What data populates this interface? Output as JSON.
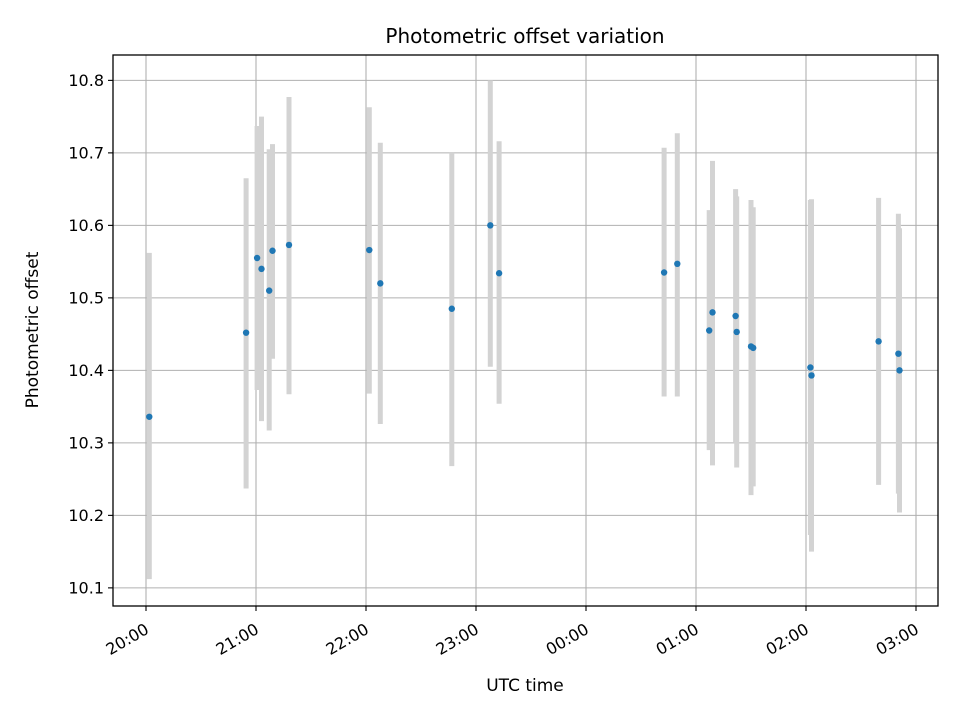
{
  "chart_data": {
    "type": "scatter",
    "title": "Photometric offset variation",
    "xlabel": "UTC time",
    "ylabel": "Photometric offset",
    "x_unit": "hours after 20:00 UTC",
    "xlim": [
      -0.3,
      7.2
    ],
    "ylim": [
      10.075,
      10.835
    ],
    "grid": true,
    "x_ticks": [
      {
        "value": 0,
        "label": "20:00"
      },
      {
        "value": 1,
        "label": "21:00"
      },
      {
        "value": 2,
        "label": "22:00"
      },
      {
        "value": 3,
        "label": "23:00"
      },
      {
        "value": 4,
        "label": "00:00"
      },
      {
        "value": 5,
        "label": "01:00"
      },
      {
        "value": 6,
        "label": "02:00"
      },
      {
        "value": 7,
        "label": "03:00"
      }
    ],
    "y_ticks": [
      {
        "value": 10.1,
        "label": "10.1"
      },
      {
        "value": 10.2,
        "label": "10.2"
      },
      {
        "value": 10.3,
        "label": "10.3"
      },
      {
        "value": 10.4,
        "label": "10.4"
      },
      {
        "value": 10.5,
        "label": "10.5"
      },
      {
        "value": 10.6,
        "label": "10.6"
      },
      {
        "value": 10.7,
        "label": "10.7"
      },
      {
        "value": 10.8,
        "label": "10.8"
      }
    ],
    "colors": {
      "point": "#1f77b4",
      "errorbar": "#d3d3d3",
      "grid": "#b0b0b0"
    },
    "series": [
      {
        "marker": "point",
        "errorbar_color": "#d3d3d3",
        "points": [
          {
            "x": 0.03,
            "y": 10.336,
            "yerr_low": 10.112,
            "yerr_high": 10.562
          },
          {
            "x": 0.91,
            "y": 10.452,
            "yerr_low": 10.237,
            "yerr_high": 10.665
          },
          {
            "x": 1.01,
            "y": 10.555,
            "yerr_low": 10.373,
            "yerr_high": 10.737
          },
          {
            "x": 1.05,
            "y": 10.54,
            "yerr_low": 10.33,
            "yerr_high": 10.75
          },
          {
            "x": 1.12,
            "y": 10.51,
            "yerr_low": 10.317,
            "yerr_high": 10.705
          },
          {
            "x": 1.15,
            "y": 10.565,
            "yerr_low": 10.416,
            "yerr_high": 10.712
          },
          {
            "x": 1.3,
            "y": 10.573,
            "yerr_low": 10.367,
            "yerr_high": 10.777
          },
          {
            "x": 2.03,
            "y": 10.566,
            "yerr_low": 10.368,
            "yerr_high": 10.763
          },
          {
            "x": 2.13,
            "y": 10.52,
            "yerr_low": 10.326,
            "yerr_high": 10.714
          },
          {
            "x": 2.78,
            "y": 10.485,
            "yerr_low": 10.268,
            "yerr_high": 10.7
          },
          {
            "x": 3.13,
            "y": 10.6,
            "yerr_low": 10.405,
            "yerr_high": 10.8
          },
          {
            "x": 3.21,
            "y": 10.534,
            "yerr_low": 10.354,
            "yerr_high": 10.716
          },
          {
            "x": 4.71,
            "y": 10.535,
            "yerr_low": 10.364,
            "yerr_high": 10.707
          },
          {
            "x": 4.83,
            "y": 10.547,
            "yerr_low": 10.364,
            "yerr_high": 10.727
          },
          {
            "x": 5.12,
            "y": 10.455,
            "yerr_low": 10.29,
            "yerr_high": 10.621
          },
          {
            "x": 5.15,
            "y": 10.48,
            "yerr_low": 10.269,
            "yerr_high": 10.689
          },
          {
            "x": 5.36,
            "y": 10.475,
            "yerr_low": 10.3,
            "yerr_high": 10.65
          },
          {
            "x": 5.37,
            "y": 10.453,
            "yerr_low": 10.266,
            "yerr_high": 10.64
          },
          {
            "x": 5.5,
            "y": 10.433,
            "yerr_low": 10.228,
            "yerr_high": 10.635
          },
          {
            "x": 5.52,
            "y": 10.431,
            "yerr_low": 10.24,
            "yerr_high": 10.625
          },
          {
            "x": 6.04,
            "y": 10.404,
            "yerr_low": 10.173,
            "yerr_high": 10.635
          },
          {
            "x": 6.05,
            "y": 10.393,
            "yerr_low": 10.15,
            "yerr_high": 10.636
          },
          {
            "x": 6.66,
            "y": 10.44,
            "yerr_low": 10.242,
            "yerr_high": 10.638
          },
          {
            "x": 6.84,
            "y": 10.423,
            "yerr_low": 10.23,
            "yerr_high": 10.616
          },
          {
            "x": 6.85,
            "y": 10.4,
            "yerr_low": 10.204,
            "yerr_high": 10.596
          }
        ]
      }
    ]
  }
}
